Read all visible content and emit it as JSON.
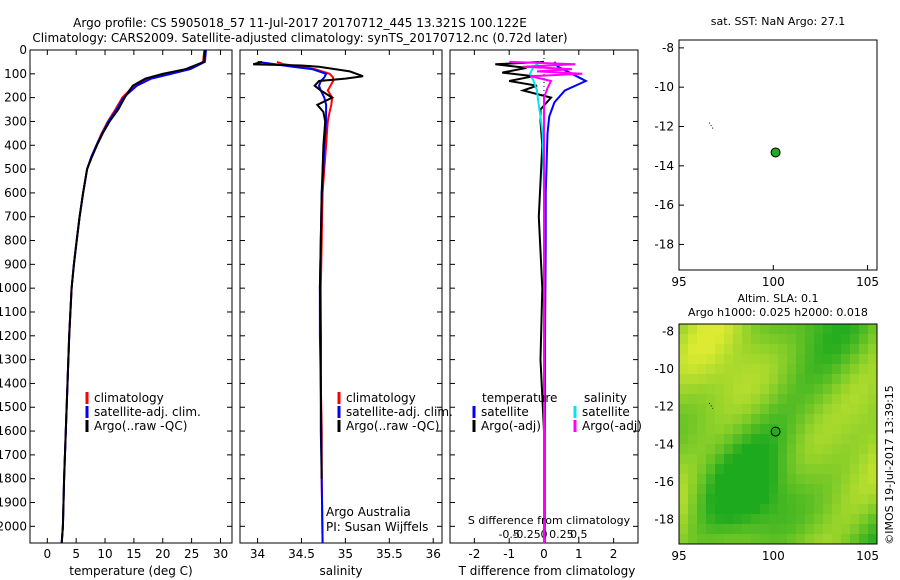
{
  "header": {
    "line1": "Argo profile: CS 5905018_57 11-Jul-2017 20170712_445 13.321S 100.122E",
    "line2": "Climatology: CARS2009. Satellite-adjusted climatology: synTS_20170712.nc (0.72d later)"
  },
  "colors": {
    "climatology": "#ff0000",
    "satellite": "#0000ff",
    "argo": "#000000",
    "salinity_satellite": "#00e5ee",
    "salinity_argo": "#ff00ff",
    "argo_dot": "#22aa22"
  },
  "labels": {
    "climatology": "climatology",
    "satellite_clim": "satellite-adj. clim.",
    "argo_raw": "Argo(..raw -QC)",
    "temperature": "temperature",
    "salinity": "salinity",
    "satellite": "satellite",
    "argo_adj": "Argo(-adj)",
    "argo_australia": "Argo Australia",
    "pi": "PI: Susan Wijffels",
    "s_diff": "S difference from climatology",
    "t_diff": "T difference from climatology",
    "sst_title": "sat. SST: NaN Argo: 27.1",
    "sla_title1": "Altim. SLA: 0.1",
    "sla_title2": "Argo h1000: 0.025 h2000: 0.018",
    "imos": "©IMOS 19-Jul-2017 13:39:15"
  },
  "chart_data": [
    {
      "type": "line",
      "xlabel": "temperature (deg C)",
      "ylabel": "",
      "xlim": [
        -3,
        32
      ],
      "ylim": [
        2070,
        0
      ],
      "xticks": [
        0,
        5,
        10,
        15,
        20,
        25,
        30
      ],
      "yticks": [
        0,
        100,
        200,
        300,
        400,
        500,
        600,
        700,
        800,
        900,
        1000,
        1100,
        1200,
        1300,
        1400,
        1500,
        1600,
        1700,
        1800,
        1900,
        2000
      ],
      "series": [
        {
          "name": "climatology",
          "color": "#ff0000",
          "x": [
            27.2,
            27.0,
            24.5,
            21.0,
            17.5,
            15.0,
            13.0,
            11.8,
            10.5,
            9.4,
            8.5,
            7.6,
            6.9,
            6.2,
            5.6,
            5.1,
            4.6,
            4.2,
            3.8,
            3.5,
            3.2,
            2.9,
            2.7,
            2.5
          ],
          "y": [
            0,
            50,
            80,
            100,
            120,
            150,
            200,
            250,
            300,
            350,
            400,
            450,
            500,
            600,
            700,
            800,
            900,
            1000,
            1200,
            1400,
            1600,
            1800,
            2000,
            2070
          ]
        },
        {
          "name": "satellite-adj. clim.",
          "color": "#0000ff",
          "x": [
            27.5,
            27.3,
            24.8,
            21.5,
            18.0,
            15.5,
            13.2,
            12.0,
            10.6,
            9.5,
            8.5,
            7.6,
            6.9,
            6.2,
            5.6,
            5.1,
            4.6,
            4.2,
            3.8,
            3.5,
            3.2,
            2.9,
            2.7,
            2.5
          ],
          "y": [
            0,
            50,
            80,
            100,
            120,
            150,
            200,
            250,
            300,
            350,
            400,
            450,
            500,
            600,
            700,
            800,
            900,
            1000,
            1200,
            1400,
            1600,
            1800,
            2000,
            2070
          ]
        },
        {
          "name": "Argo(..raw -QC)",
          "color": "#000000",
          "x": [
            27.3,
            27.1,
            24.0,
            20.0,
            17.0,
            14.8,
            13.4,
            12.3,
            10.8,
            9.6,
            8.6,
            7.7,
            6.9,
            6.2,
            5.6,
            5.1,
            4.6,
            4.2,
            3.8,
            3.5,
            3.2,
            2.9,
            2.7,
            2.5
          ],
          "y": [
            0,
            50,
            80,
            100,
            120,
            150,
            200,
            250,
            300,
            350,
            400,
            450,
            500,
            600,
            700,
            800,
            900,
            1000,
            1200,
            1400,
            1600,
            1800,
            2000,
            2070
          ]
        }
      ]
    },
    {
      "type": "line",
      "xlabel": "salinity",
      "ylabel": "",
      "xlim": [
        33.8,
        36.1
      ],
      "ylim": [
        2070,
        0
      ],
      "xticks": [
        34,
        34.5,
        35,
        35.5,
        36
      ],
      "series": [
        {
          "name": "climatology",
          "color": "#ff0000",
          "x": [
            34.22,
            34.3,
            34.5,
            34.65,
            34.82,
            34.86,
            34.86,
            34.83,
            34.8,
            34.85,
            34.84,
            34.82,
            34.8,
            34.79,
            34.78,
            34.76,
            34.74,
            34.73,
            34.72,
            34.72,
            34.72,
            34.73,
            34.73,
            34.74
          ],
          "y": [
            50,
            60,
            70,
            80,
            100,
            115,
            130,
            150,
            170,
            200,
            230,
            260,
            300,
            350,
            400,
            500,
            600,
            800,
            1000,
            1200,
            1400,
            1600,
            1800,
            2070
          ]
        },
        {
          "name": "satellite-adj. clim.",
          "color": "#0000ff",
          "x": [
            34.0,
            34.2,
            34.4,
            34.62,
            34.78,
            34.76,
            34.72,
            34.7,
            34.72,
            34.76,
            34.78,
            34.78,
            34.78,
            34.77,
            34.76,
            34.75,
            34.73,
            34.72,
            34.71,
            34.71,
            34.72,
            34.72,
            34.73,
            34.74
          ],
          "y": [
            50,
            60,
            70,
            80,
            100,
            115,
            130,
            150,
            170,
            200,
            230,
            260,
            300,
            350,
            400,
            500,
            600,
            800,
            1000,
            1200,
            1400,
            1600,
            1800,
            2070
          ]
        },
        {
          "name": "Argo(..raw -QC)",
          "color": "#000000",
          "x": [
            34.05,
            33.95,
            34.5,
            34.7,
            35.05,
            35.2,
            35.0,
            34.7,
            34.65,
            34.72,
            34.85,
            34.68,
            34.75,
            34.77,
            34.76,
            34.75,
            34.74,
            34.73,
            34.72,
            34.71,
            34.72,
            34.72,
            34.73
          ],
          "y": [
            50,
            60,
            65,
            70,
            90,
            110,
            120,
            130,
            150,
            170,
            200,
            230,
            260,
            300,
            350,
            400,
            500,
            600,
            800,
            1000,
            1200,
            1400,
            1800
          ]
        }
      ]
    },
    {
      "type": "line",
      "xlabel": "T difference from climatology",
      "x2label": "S difference from climatology",
      "xlim": [
        -2.7,
        2.7
      ],
      "ylim": [
        2070,
        0
      ],
      "xticks": [
        -2,
        -1,
        0,
        1,
        2
      ],
      "x2ticks": [
        -0.5,
        -0.25,
        0,
        0.25,
        0.5
      ],
      "legend_headers": [
        "temperature",
        "salinity"
      ],
      "series": [
        {
          "name": "satellite",
          "group": "temperature",
          "color": "#0000ff",
          "x": [
            0.3,
            0.4,
            0.8,
            1.2,
            0.6,
            0.3,
            0.15,
            0.1,
            0.08,
            0.05,
            0.05,
            0.04,
            0.03,
            0.03,
            0.02,
            0.02,
            0.02,
            0.02
          ],
          "y": [
            50,
            70,
            100,
            130,
            170,
            220,
            280,
            350,
            450,
            600,
            800,
            1000,
            1200,
            1400,
            1600,
            1800,
            2000,
            2070
          ]
        },
        {
          "name": "Argo(-adj)",
          "group": "temperature",
          "color": "#000000",
          "x": [
            0.0,
            -1.4,
            -0.5,
            -1.2,
            -0.3,
            -1.0,
            -0.2,
            -0.6,
            0.2,
            -0.1,
            -0.1,
            -0.05,
            -0.15,
            -0.05,
            -0.1,
            0.0,
            0.0,
            0.0
          ],
          "y": [
            50,
            60,
            75,
            95,
            110,
            130,
            150,
            170,
            200,
            250,
            300,
            400,
            700,
            1000,
            1300,
            1600,
            1900,
            2070
          ]
        },
        {
          "name": "satellite",
          "group": "salinity",
          "color": "#00e5ee",
          "x": [
            -0.05,
            -0.15,
            -0.2,
            -0.15,
            -0.1,
            -0.08,
            -0.05,
            -0.02,
            -0.01,
            0.0,
            0.0,
            0.0,
            0.0,
            0.0,
            0.0,
            0.0
          ],
          "y": [
            50,
            70,
            100,
            130,
            170,
            220,
            280,
            350,
            450,
            600,
            800,
            1000,
            1300,
            1600,
            1900,
            2070
          ]
        },
        {
          "name": "Argo(-adj)",
          "group": "salinity",
          "color": "#ff00ff",
          "x": [
            -0.5,
            0.45,
            -0.3,
            0.4,
            -0.1,
            0.55,
            -0.2,
            0.1,
            0.05,
            0.0,
            0.0,
            0.0,
            0.0,
            0.0,
            0.0
          ],
          "y": [
            50,
            60,
            70,
            80,
            90,
            100,
            110,
            130,
            160,
            200,
            300,
            500,
            800,
            1200,
            2070
          ]
        }
      ]
    },
    {
      "type": "scatter",
      "title": "sat. SST: NaN Argo: 27.1",
      "xlim": [
        95,
        105.5
      ],
      "ylim": [
        -19.3,
        -7.6
      ],
      "xticks": [
        95,
        100,
        105
      ],
      "yticks": [
        -8,
        -10,
        -12,
        -14,
        -16,
        -18
      ],
      "points": [
        {
          "x": 100.122,
          "y": -13.321
        }
      ],
      "track": [
        {
          "x": 96.6,
          "y": -11.8
        },
        {
          "x": 96.8,
          "y": -12.1
        }
      ]
    },
    {
      "type": "heatmap",
      "title": "Altim. SLA: 0.1",
      "subtitle": "Argo h1000: 0.025 h2000: 0.018",
      "xlim": [
        95,
        105.5
      ],
      "ylim": [
        -19.3,
        -7.6
      ],
      "xticks": [
        95,
        100,
        105
      ],
      "yticks": [
        -8,
        -10,
        -12,
        -14,
        -16,
        -18
      ],
      "points": [
        {
          "x": 100.122,
          "y": -13.321
        }
      ],
      "track": [
        {
          "x": 96.6,
          "y": -11.8
        },
        {
          "x": 96.8,
          "y": -12.1
        }
      ]
    }
  ]
}
